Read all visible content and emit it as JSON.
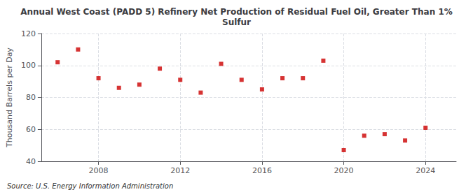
{
  "chart_data": {
    "type": "scatter",
    "title": "Annual West Coast (PADD 5) Refinery Net Production of Residual Fuel Oil, Greater Than 1%\nSulfur",
    "ylabel": "Thousand Barrels per Day",
    "source": "Source: U.S. Energy Information Administration",
    "x": [
      2006,
      2007,
      2008,
      2009,
      2010,
      2011,
      2012,
      2013,
      2014,
      2015,
      2016,
      2017,
      2018,
      2019,
      2020,
      2021,
      2022,
      2023,
      2024
    ],
    "values": [
      102,
      110,
      92,
      86,
      88,
      98,
      91,
      83,
      101,
      91,
      85,
      92,
      92,
      103,
      47,
      56,
      57,
      53,
      61
    ],
    "color": "#cc0000",
    "marker": "square",
    "xlim": [
      2005.2,
      2025.5
    ],
    "xticks": [
      2008,
      2012,
      2016,
      2020,
      2024
    ],
    "ylim": [
      40,
      120
    ],
    "yticks": [
      40,
      60,
      80,
      100,
      120
    ],
    "grid": true
  }
}
